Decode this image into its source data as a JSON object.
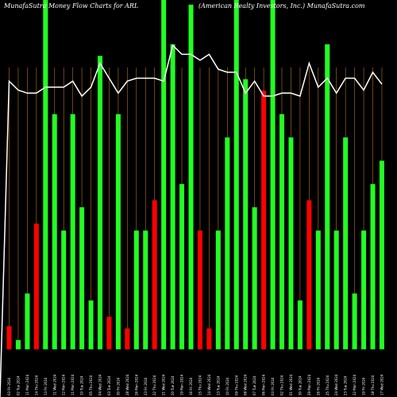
{
  "chart_data": {
    "type": "bar",
    "title_left": "MunafaSutra  Money Flow  Charts for ARL",
    "title_right": "(American  Realty Investors,  Inc.) MunafaSutra.com",
    "xlabel": "",
    "ylabel": "",
    "grid": true,
    "colors": {
      "background": "#000000",
      "up": "#22ff22",
      "down": "#ff0000",
      "grid": "#b8741a",
      "line": "#ffffff"
    },
    "categories": [
      "03 Fri 2024",
      "02 Tue 2024",
      "11 Mon 2024",
      "14 Thu 2024",
      "13 Fri 2024",
      "11 Wed 2024",
      "12 Mon 2024",
      "11 Mon 2024",
      "10 Tue 2024",
      "05 Thu 2024",
      "04 Wed 2024",
      "03 Tue 2024",
      "30 Fri 2024",
      "28 Wed 2024",
      "26 Mon 2024",
      "23 Fri 2024",
      "22 Thu 2024",
      "21 Wed 2024",
      "20 Tue 2024",
      "19 Mon 2024",
      "16 Fri 2024",
      "15 Thu 2024",
      "14 Wed 2024",
      "13 Tue 2024",
      "10 Fri 2024",
      "09 Thu 2024",
      "08 Wed 2024",
      "07 Tue 2024",
      "06 Mon 2024",
      "03 Fri 2024",
      "02 Thu 2024",
      "01 Wed 2024",
      "30 Tue 2024",
      "29 Mon 2024",
      "26 Fri 2024",
      "25 Thu 2024",
      "24 Wed 2024",
      "23 Tue 2024",
      "22 Mon 2024",
      "19 Fri 2024",
      "18 Thu 2024",
      "17 Wed 2024"
    ],
    "values": [
      10,
      4,
      24,
      54,
      150,
      101,
      51,
      101,
      61,
      21,
      126,
      14,
      101,
      9,
      51,
      51,
      64,
      150,
      131,
      71,
      148,
      51,
      9,
      51,
      91,
      150,
      116,
      61,
      111,
      150,
      101,
      91,
      21,
      64,
      51,
      131,
      51,
      91,
      24,
      51,
      71,
      81
    ],
    "directions": [
      "down",
      "up",
      "up",
      "down",
      "up",
      "up",
      "up",
      "up",
      "up",
      "up",
      "up",
      "down",
      "up",
      "down",
      "up",
      "up",
      "down",
      "up",
      "up",
      "up",
      "up",
      "down",
      "down",
      "up",
      "up",
      "up",
      "up",
      "up",
      "down",
      "up",
      "up",
      "up",
      "up",
      "down",
      "up",
      "up",
      "up",
      "up",
      "up",
      "up",
      "up",
      "up"
    ],
    "line_values": [
      76,
      73,
      72,
      72,
      74,
      74,
      74,
      76,
      71,
      74,
      82,
      77,
      72,
      76,
      77,
      77,
      77,
      76,
      88,
      85,
      85,
      83,
      85,
      80,
      79,
      79,
      72,
      76,
      71,
      71,
      72,
      72,
      71,
      82,
      74,
      77,
      72,
      77,
      77,
      73,
      79,
      75
    ],
    "ylim": [
      0,
      150
    ],
    "line_ylim": [
      0,
      100
    ]
  }
}
